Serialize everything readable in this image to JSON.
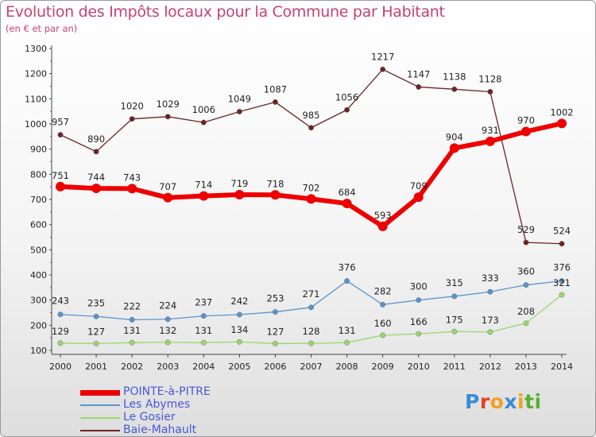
{
  "title": "Evolution des Impôts locaux pour la Commune par Habitant",
  "subtitle": "(en € et par an)",
  "logo": {
    "letters": [
      "P",
      "r",
      "o",
      "x",
      "i",
      "t",
      "i"
    ],
    "colors": [
      "#3a8ad8",
      "#e24020",
      "#f0a020",
      "#3a8ad8",
      "#f0a020",
      "#58b030",
      "#58b030"
    ]
  },
  "chart_data": {
    "type": "line",
    "title": "Evolution des Impôts locaux pour la Commune par Habitant",
    "subtitle": "(en € et par an)",
    "xlabel": "",
    "ylabel": "",
    "x": [
      "2000",
      "2001",
      "2002",
      "2003",
      "2004",
      "2005",
      "2006",
      "2007",
      "2008",
      "2009",
      "2010",
      "2011",
      "2012",
      "2013",
      "2014"
    ],
    "ylim": [
      100,
      1300
    ],
    "yticks": [
      "100",
      "200",
      "300",
      "400",
      "500",
      "600",
      "700",
      "800",
      "900",
      "1000",
      "1100",
      "1200",
      "1300"
    ],
    "legend_position": "bottom-left",
    "series": [
      {
        "name": "POINTE-à-PITRE",
        "color": "#ee0000",
        "values": [
          751,
          744,
          743,
          707,
          714,
          719,
          718,
          702,
          684,
          593,
          709,
          904,
          931,
          970,
          1002
        ],
        "labels": [
          "751",
          "744",
          "743",
          "707",
          "714",
          "719",
          "718",
          "702",
          "684",
          "593",
          "709",
          "904",
          "931",
          "970",
          "1002"
        ]
      },
      {
        "name": "Les Abymes",
        "color": "#5a94cc",
        "values": [
          243,
          235,
          222,
          224,
          237,
          242,
          253,
          271,
          376,
          282,
          300,
          315,
          333,
          360,
          376
        ],
        "labels": [
          "243",
          "235",
          "222",
          "224",
          "237",
          "242",
          "253",
          "271",
          "376",
          "282",
          "300",
          "315",
          "333",
          "360",
          "376"
        ]
      },
      {
        "name": "Le Gosier",
        "color": "#98d870",
        "values": [
          129,
          127,
          131,
          132,
          131,
          134,
          127,
          128,
          131,
          160,
          166,
          175,
          173,
          208,
          321
        ],
        "labels": [
          "129",
          "127",
          "131",
          "132",
          "131",
          "134",
          "127",
          "128",
          "131",
          "160",
          "166",
          "175",
          "173",
          "208",
          "321"
        ]
      },
      {
        "name": "Baie-Mahault",
        "color": "#6e2424",
        "values": [
          957,
          890,
          1020,
          1029,
          1006,
          1049,
          1087,
          985,
          1056,
          1217,
          1147,
          1138,
          1128,
          529,
          524
        ],
        "labels": [
          "957",
          "890",
          "1020",
          "1029",
          "1006",
          "1049",
          "1087",
          "985",
          "1056",
          "1217",
          "1147",
          "1138",
          "1128",
          "529",
          "524"
        ]
      }
    ]
  }
}
